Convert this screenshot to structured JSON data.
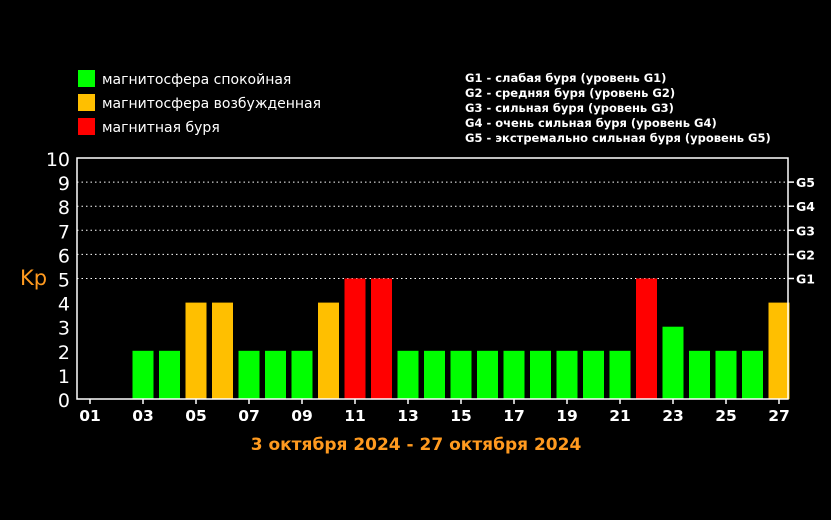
{
  "legend": {
    "items": [
      {
        "label": "магнитосфера спокойная",
        "color": "#00ff00"
      },
      {
        "label": "магнитосфера возбужденная",
        "color": "#ffbf00"
      },
      {
        "label": "магнитная буря",
        "color": "#ff0000"
      }
    ],
    "storm_levels": [
      "G1 - слабая буря (уровень G1)",
      "G2 - средняя буря (уровень G2)",
      "G3 - сильная буря (уровень G3)",
      "G4 - очень сильная буря (уровень G4)",
      "G5 - экстремально сильная буря (уровень G5)"
    ]
  },
  "colors": {
    "calm": "#00ff00",
    "excited": "#ffbf00",
    "storm": "#ff0000",
    "axis_title": "#ff9a1f",
    "date_range": "#ff9a1f",
    "text": "#ffffff",
    "background": "#000000"
  },
  "chart_data": {
    "type": "bar",
    "title": "3 октября 2024 - 27 октября 2024",
    "ylabel": "Kp",
    "ylim": [
      0,
      10
    ],
    "yticks": [
      "0",
      "1",
      "2",
      "3",
      "4",
      "5",
      "6",
      "7",
      "8",
      "9",
      "10"
    ],
    "right_labels": [
      {
        "value": 5,
        "label": "G1"
      },
      {
        "value": 6,
        "label": "G2"
      },
      {
        "value": 7,
        "label": "G3"
      },
      {
        "value": 8,
        "label": "G4"
      },
      {
        "value": 9,
        "label": "G5"
      }
    ],
    "grid": "dotted horizontal lines at 5, 6, 7, 8, 9",
    "categories": [
      "01",
      "02",
      "03",
      "04",
      "05",
      "06",
      "07",
      "08",
      "09",
      "10",
      "11",
      "12",
      "13",
      "14",
      "15",
      "16",
      "17",
      "18",
      "19",
      "20",
      "21",
      "22",
      "23",
      "24",
      "25",
      "26",
      "27"
    ],
    "x_tick_labels": [
      "01",
      "03",
      "05",
      "07",
      "09",
      "11",
      "13",
      "15",
      "17",
      "19",
      "21",
      "23",
      "25",
      "27"
    ],
    "values": [
      null,
      null,
      2,
      2,
      4,
      4,
      2,
      2,
      2,
      4,
      5,
      5,
      2,
      2,
      2,
      2,
      2,
      2,
      2,
      2,
      2,
      5,
      3,
      2,
      2,
      2,
      4
    ],
    "bar_status": [
      null,
      null,
      "calm",
      "calm",
      "excited",
      "excited",
      "calm",
      "calm",
      "calm",
      "excited",
      "storm",
      "storm",
      "calm",
      "calm",
      "calm",
      "calm",
      "calm",
      "calm",
      "calm",
      "calm",
      "calm",
      "storm",
      "calm",
      "calm",
      "calm",
      "calm",
      "excited"
    ]
  }
}
